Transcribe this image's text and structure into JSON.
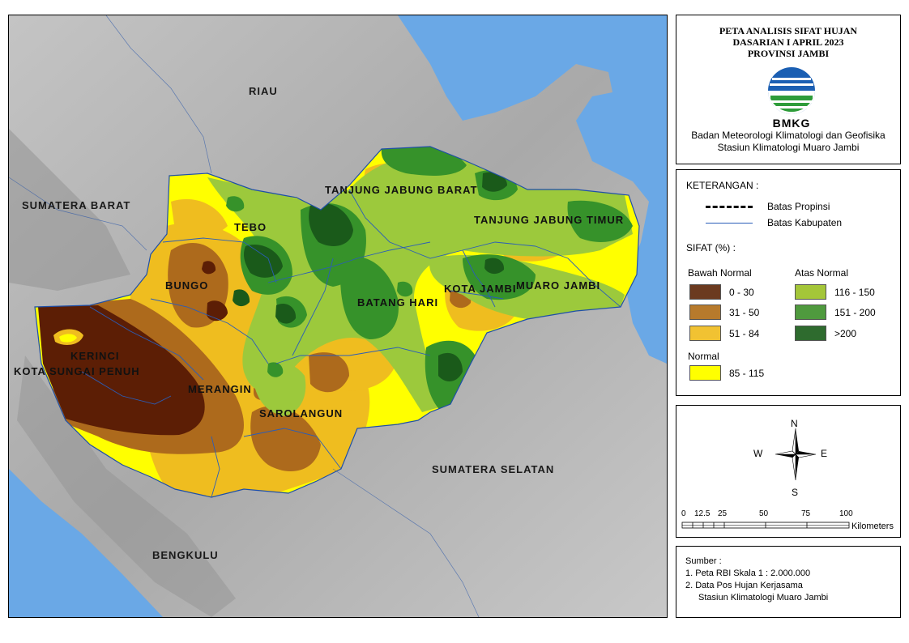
{
  "title": {
    "line1": "PETA ANALISIS SIFAT HUJAN",
    "line2": "DASARIAN I APRIL 2023",
    "line3": "PROVINSI JAMBI",
    "agency_name": "Badan Meteorologi Klimatologi dan Geofisika",
    "station_name": "Stasiun Klimatologi Muaro Jambi",
    "logo_text": "BMKG"
  },
  "map": {
    "regions": {
      "riau": "RIAU",
      "sumatera_barat": "SUMATERA BARAT",
      "sumatera_selatan": "SUMATERA SELATAN",
      "bengkulu": "BENGKULU"
    },
    "districts": {
      "tanjung_jabung_barat": "TANJUNG JABUNG BARAT",
      "tanjung_jabung_timur": "TANJUNG JABUNG TIMUR",
      "tebo": "TEBO",
      "bungo": "BUNGO",
      "batang_hari": "BATANG HARI",
      "kota_jambi": "KOTA JAMBI",
      "muaro_jambi": "MUARO JAMBI",
      "kerinci": "KERINCI",
      "kota_sungai_penuh": "KOTA SUNGAI PENUH",
      "merangin": "MERANGIN",
      "sarolangun": "SAROLANGUN"
    }
  },
  "legend": {
    "heading": "KETERANGAN :",
    "boundary_province": "Batas Propinsi",
    "boundary_regency": "Batas Kabupaten",
    "sifat_heading": "SIFAT (%) :",
    "below_normal_heading": "Bawah Normal",
    "above_normal_heading": "Atas Normal",
    "normal_heading": "Normal",
    "classes": {
      "bn1": {
        "label": "0 - 30",
        "color": "#6b3a1f"
      },
      "bn2": {
        "label": "31 - 50",
        "color": "#b77a2c"
      },
      "bn3": {
        "label": "51 - 84",
        "color": "#f1c232"
      },
      "an1": {
        "label": "116 - 150",
        "color": "#a4c639"
      },
      "an2": {
        "label": "151 - 200",
        "color": "#4f9a3e"
      },
      "an3": {
        "label": ">200",
        "color": "#2e6b2e"
      },
      "n": {
        "label": "85 - 115",
        "color": "#ffff00"
      }
    },
    "map_colors": {
      "bn1": "#5c1e05",
      "bn2": "#ad6a1c",
      "bn3": "#efbd1f",
      "n": "#ffff00",
      "an1": "#9cc93c",
      "an2": "#36922a",
      "an3": "#1a5a1a",
      "sea": "#6aa8e6",
      "land": "#a8a8a8",
      "boundary": "#2a5db8"
    }
  },
  "compass": {
    "n": "N",
    "s": "S",
    "e": "E",
    "w": "W"
  },
  "scale": {
    "ticks": [
      "0",
      "12.5",
      "25",
      "50",
      "75",
      "100"
    ],
    "unit": "Kilometers"
  },
  "source": {
    "heading": "Sumber :",
    "line1": "1. Peta RBI Skala 1 : 2.000.000",
    "line2": "2. Data Pos Hujan Kerjasama",
    "line3": "Stasiun Klimatologi Muaro Jambi"
  }
}
